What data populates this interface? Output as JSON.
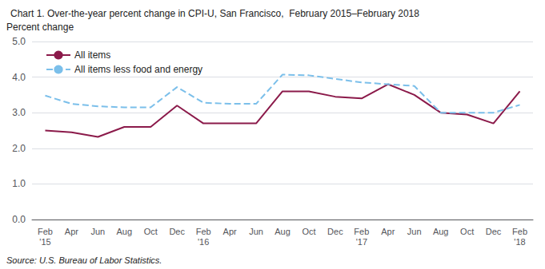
{
  "chart_data": {
    "type": "line",
    "title": "Chart 1. Over-the-year percent change in CPI-U, San Francisco,  February 2015–February 2018",
    "ylabel": "Percent change",
    "annotations": [
      "Source: U.S. Bureau of Labor Statistics."
    ],
    "categories": [
      "Feb\n'15",
      "Apr",
      "Jun",
      "Aug",
      "Oct",
      "Dec",
      "Feb\n'16",
      "Apr",
      "Jun",
      "Aug",
      "Oct",
      "Dec",
      "Feb\n'17",
      "Apr",
      "Jun",
      "Aug",
      "Oct",
      "Dec",
      "Feb\n'18"
    ],
    "series": [
      {
        "name": "All items",
        "color": "#8B1A4A",
        "line_style": "solid",
        "values": [
          2.5,
          2.45,
          2.32,
          2.6,
          2.6,
          3.2,
          2.7,
          2.7,
          2.7,
          3.6,
          3.6,
          3.45,
          3.4,
          3.8,
          3.5,
          3.0,
          2.95,
          2.7,
          3.6
        ]
      },
      {
        "name": "All items less food and energy",
        "color": "#7BBFEA",
        "line_style": "dashed",
        "values": [
          3.48,
          3.25,
          3.18,
          3.15,
          3.15,
          3.72,
          3.28,
          3.25,
          3.25,
          4.07,
          4.05,
          3.95,
          3.85,
          3.8,
          3.75,
          3.0,
          3.0,
          3.0,
          3.22
        ]
      }
    ],
    "ylim": [
      0.0,
      5.0
    ],
    "yticks": [
      {
        "value": 0,
        "label": "0.0"
      },
      {
        "value": 1,
        "label": "1.0"
      },
      {
        "value": 2,
        "label": "2.0"
      },
      {
        "value": 3,
        "label": "3.0"
      },
      {
        "value": 4,
        "label": "4.0"
      },
      {
        "value": 5,
        "label": "5.0"
      }
    ],
    "grid": true,
    "legend": "upper left"
  }
}
